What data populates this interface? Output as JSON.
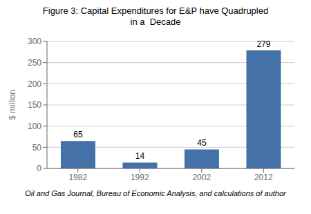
{
  "chart_data": {
    "type": "bar",
    "title": "Figure 3: Capital Expenditures for E&P have Quadrupled\nin a  Decade",
    "ylabel": "$ million",
    "caption": "Oil and Gas Journal, Bureau of Economic Analysis, and calculations of author",
    "categories": [
      "1982",
      "1992",
      "2002",
      "2012"
    ],
    "values": [
      65,
      14,
      45,
      279
    ],
    "color": "#4472a8",
    "ylim": [
      0,
      300
    ],
    "yticks": [
      0,
      50,
      100,
      150,
      200,
      250,
      300
    ],
    "grid": true,
    "data_labels": true
  }
}
